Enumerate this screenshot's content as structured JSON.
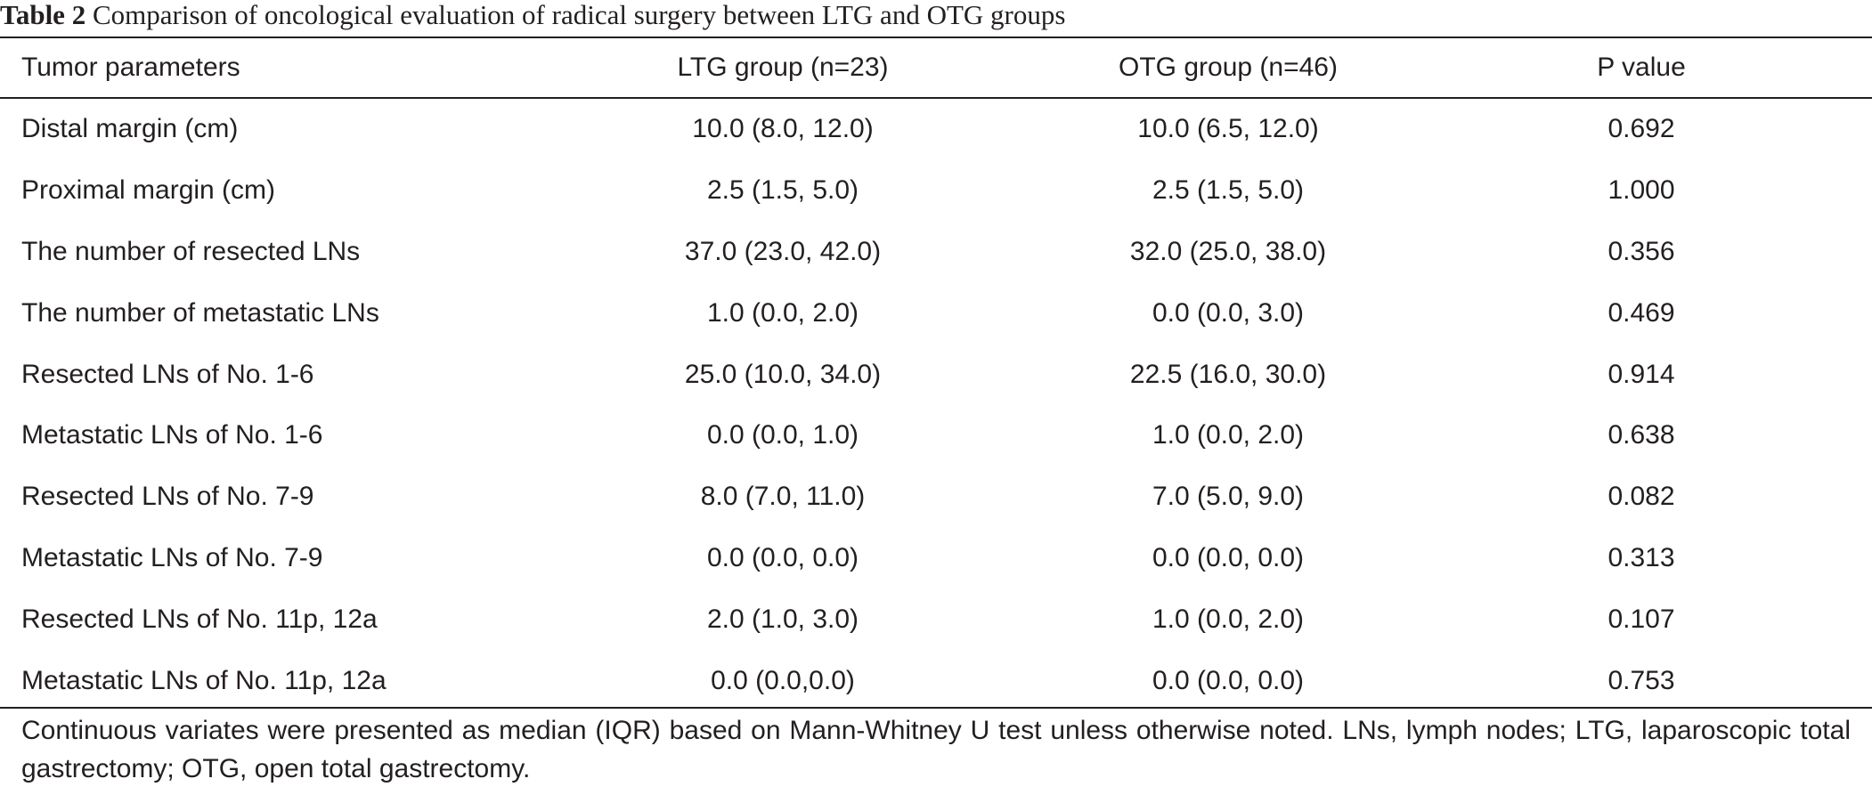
{
  "caption": {
    "label": "Table 2",
    "text": "Comparison of oncological evaluation of radical surgery between LTG and OTG groups"
  },
  "table": {
    "headers": [
      "Tumor parameters",
      "LTG group (n=23)",
      "OTG group (n=46)",
      "P value"
    ],
    "rows": [
      [
        "Distal margin (cm)",
        "10.0 (8.0, 12.0)",
        "10.0 (6.5, 12.0)",
        "0.692"
      ],
      [
        "Proximal margin (cm)",
        "2.5 (1.5, 5.0)",
        "2.5 (1.5, 5.0)",
        "1.000"
      ],
      [
        "The number of resected LNs",
        "37.0 (23.0, 42.0)",
        "32.0 (25.0, 38.0)",
        "0.356"
      ],
      [
        "The number of metastatic LNs",
        "1.0 (0.0, 2.0)",
        "0.0 (0.0, 3.0)",
        "0.469"
      ],
      [
        "Resected LNs of No. 1-6",
        "25.0 (10.0, 34.0)",
        "22.5 (16.0, 30.0)",
        "0.914"
      ],
      [
        "Metastatic LNs of No. 1-6",
        "0.0 (0.0, 1.0)",
        "1.0 (0.0, 2.0)",
        "0.638"
      ],
      [
        "Resected LNs of No. 7-9",
        "8.0 (7.0, 11.0)",
        "7.0 (5.0, 9.0)",
        "0.082"
      ],
      [
        "Metastatic LNs of No. 7-9",
        "0.0 (0.0, 0.0)",
        "0.0 (0.0, 0.0)",
        "0.313"
      ],
      [
        "Resected LNs of No. 11p, 12a",
        "2.0 (1.0, 3.0)",
        "1.0 (0.0, 2.0)",
        "0.107"
      ],
      [
        "Metastatic LNs of No. 11p, 12a",
        "0.0 (0.0,0.0)",
        "0.0 (0.0, 0.0)",
        "0.753"
      ]
    ]
  },
  "footnote": "Continuous variates were presented as median (IQR) based on Mann-Whitney U test unless otherwise noted. LNs, lymph nodes; LTG, laparoscopic total gastrectomy; OTG, open total gastrectomy."
}
